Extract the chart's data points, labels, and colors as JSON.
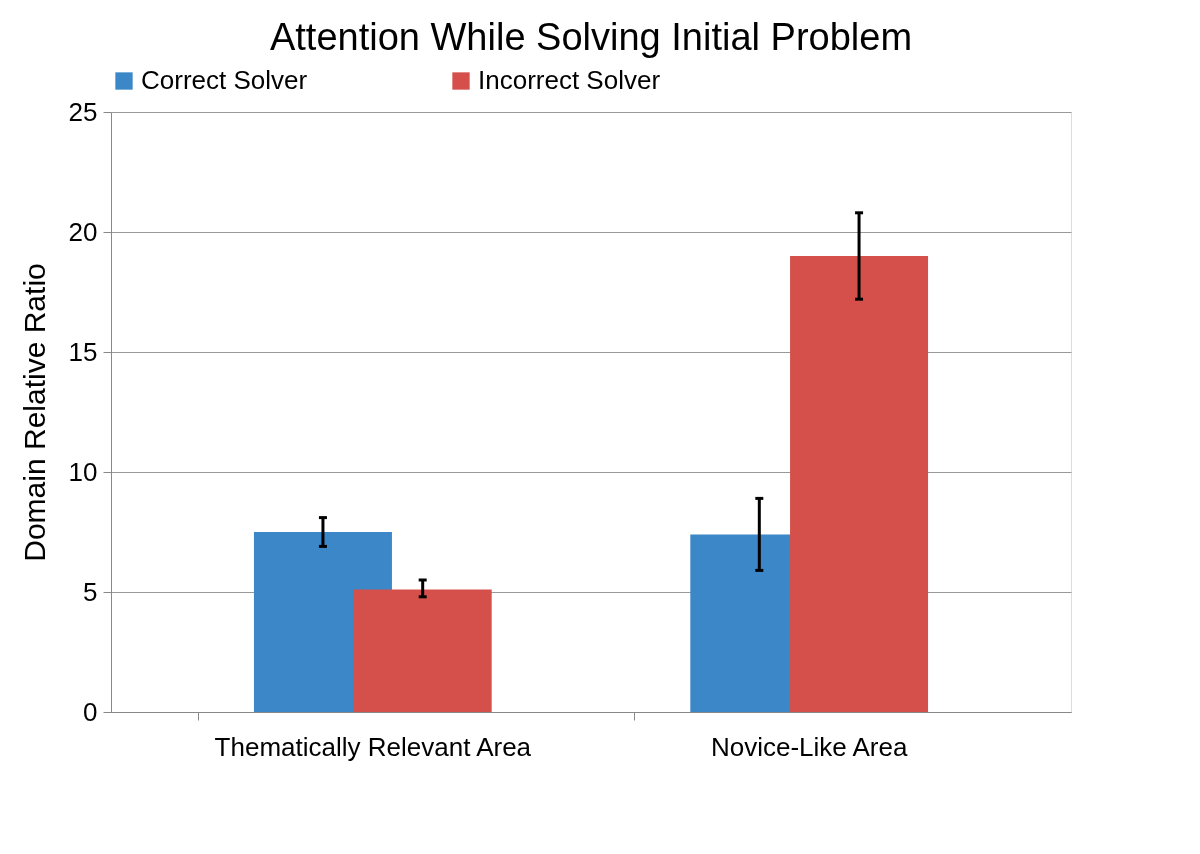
{
  "chart_data": {
    "type": "bar",
    "title": "Attention While Solving Initial Problem",
    "ylabel": "Domain Relative Ratio",
    "categories": [
      "Thematically Relevant Area",
      "Novice-Like Area"
    ],
    "series": [
      {
        "name": "Correct Solver",
        "color": "#3b87c8",
        "values": [
          7.5,
          7.4
        ],
        "errors": [
          [
            6.9,
            8.1
          ],
          [
            5.9,
            8.9
          ]
        ]
      },
      {
        "name": "Incorrect Solver",
        "color": "#d6504b",
        "values": [
          5.1,
          19.0
        ],
        "errors": [
          [
            4.8,
            5.5
          ],
          [
            17.2,
            20.8
          ]
        ]
      }
    ],
    "ylim": [
      0,
      25
    ],
    "yticks": [
      0,
      5,
      10,
      15,
      20,
      25
    ],
    "grid": "y",
    "legend": "top"
  }
}
